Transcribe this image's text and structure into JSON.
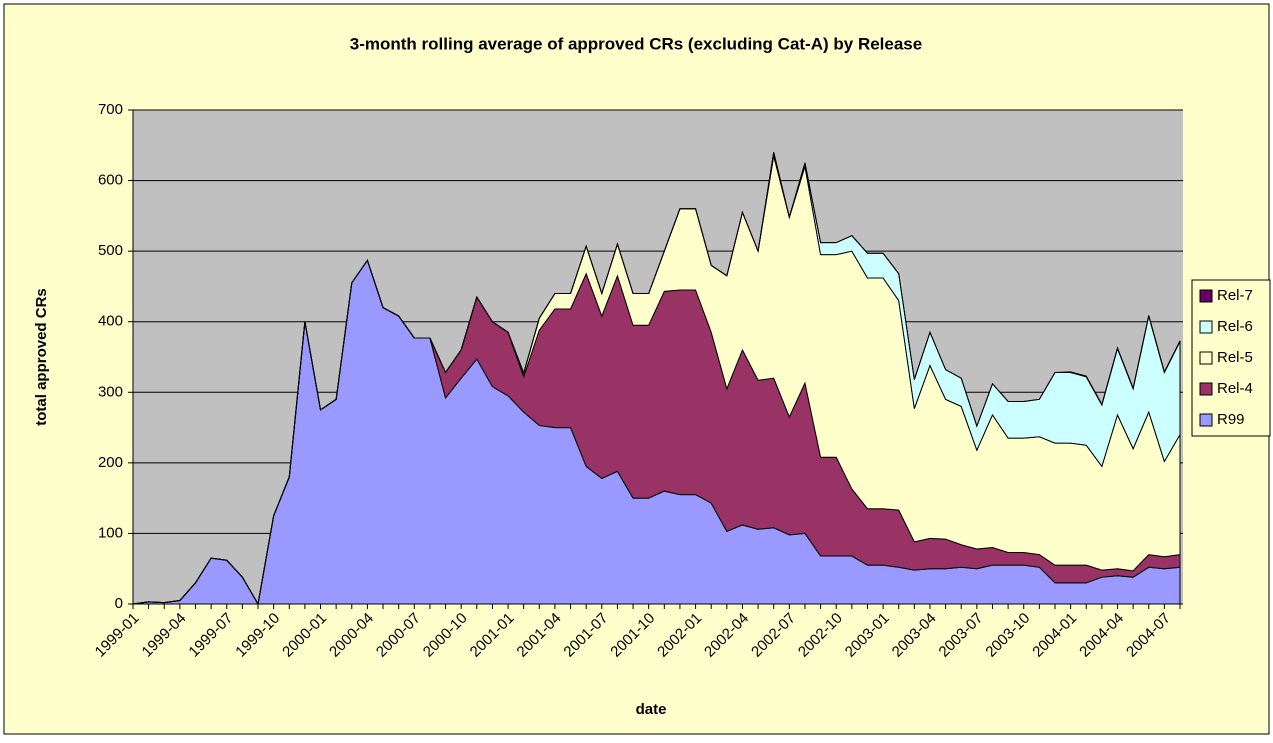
{
  "chart_data": {
    "type": "stacked_area",
    "title": "3-month rolling average of approved CRs (excluding Cat-A) by Release",
    "xlabel": "date",
    "ylabel": "total approved CRs",
    "categories": [
      "1999-01",
      null,
      null,
      "1999-04",
      null,
      null,
      "1999-07",
      null,
      null,
      "1999-10",
      null,
      null,
      "2000-01",
      null,
      null,
      "2000-04",
      null,
      null,
      "2000-07",
      null,
      null,
      "2000-10",
      null,
      null,
      "2001-01",
      null,
      null,
      "2001-04",
      null,
      null,
      "2001-07",
      null,
      null,
      "2001-10",
      null,
      null,
      "2002-01",
      null,
      null,
      "2002-04",
      null,
      null,
      "2002-07",
      null,
      null,
      "2002-10",
      null,
      null,
      "2003-01",
      null,
      null,
      "2003-04",
      null,
      null,
      "2003-07",
      null,
      null,
      "2003-10",
      null,
      null,
      "2004-01",
      null,
      null,
      "2004-04",
      null,
      null,
      "2004-07",
      null
    ],
    "series": [
      {
        "name": "R99",
        "color": "#9999ff",
        "values": [
          0,
          3,
          2,
          5,
          30,
          65,
          62,
          38,
          0,
          125,
          180,
          400,
          275,
          290,
          455,
          487,
          420,
          408,
          377,
          377,
          292,
          320,
          347,
          308,
          295,
          272,
          253,
          250,
          250,
          195,
          178,
          188,
          150,
          150,
          160,
          155,
          155,
          143,
          103,
          112,
          106,
          108,
          98,
          100,
          68,
          68,
          68,
          55,
          55,
          52,
          48,
          50,
          50,
          52,
          50,
          55,
          55,
          55,
          52,
          30,
          30,
          30,
          38,
          40,
          38,
          52,
          50,
          52
        ]
      },
      {
        "name": "Rel-4",
        "color": "#993366",
        "values": [
          0,
          0,
          0,
          0,
          0,
          0,
          0,
          0,
          0,
          0,
          0,
          0,
          0,
          0,
          0,
          0,
          0,
          0,
          0,
          0,
          36,
          40,
          88,
          92,
          90,
          50,
          135,
          168,
          168,
          273,
          230,
          277,
          245,
          245,
          283,
          290,
          290,
          242,
          202,
          248,
          211,
          212,
          167,
          213,
          140,
          140,
          95,
          80,
          80,
          81,
          40,
          43,
          42,
          32,
          28,
          25,
          18,
          18,
          18,
          25,
          25,
          25,
          10,
          10,
          9,
          18,
          17,
          18
        ]
      },
      {
        "name": "Rel-5",
        "color": "#ffffcc",
        "values": [
          0,
          0,
          0,
          0,
          0,
          0,
          0,
          0,
          0,
          0,
          0,
          0,
          0,
          0,
          0,
          0,
          0,
          0,
          0,
          0,
          0,
          0,
          0,
          0,
          0,
          5,
          17,
          22,
          22,
          39,
          32,
          45,
          45,
          45,
          57,
          115,
          115,
          95,
          160,
          195,
          183,
          315,
          283,
          307,
          287,
          287,
          337,
          327,
          327,
          297,
          189,
          245,
          198,
          196,
          140,
          188,
          162,
          162,
          167,
          173,
          173,
          170,
          147,
          218,
          173,
          202,
          135,
          170
        ]
      },
      {
        "name": "Rel-6",
        "color": "#ccffff",
        "values": [
          0,
          0,
          0,
          0,
          0,
          0,
          0,
          0,
          0,
          0,
          0,
          0,
          0,
          0,
          0,
          0,
          0,
          0,
          0,
          0,
          0,
          0,
          0,
          0,
          0,
          0,
          0,
          0,
          0,
          0,
          0,
          0,
          0,
          0,
          0,
          0,
          0,
          0,
          0,
          0,
          0,
          5,
          0,
          5,
          17,
          17,
          22,
          35,
          35,
          38,
          41,
          47,
          42,
          40,
          34,
          44,
          52,
          52,
          53,
          100,
          100,
          97,
          87,
          94,
          85,
          136,
          126,
          132
        ]
      },
      {
        "name": "Rel-7",
        "color": "#660066",
        "values": [
          0,
          0,
          0,
          0,
          0,
          0,
          0,
          0,
          0,
          0,
          0,
          0,
          0,
          0,
          0,
          0,
          0,
          0,
          0,
          0,
          0,
          0,
          0,
          0,
          0,
          0,
          0,
          0,
          0,
          0,
          0,
          0,
          0,
          0,
          0,
          0,
          0,
          0,
          0,
          0,
          0,
          0,
          0,
          0,
          0,
          0,
          0,
          0,
          0,
          0,
          0,
          0,
          0,
          0,
          0,
          0,
          0,
          0,
          0,
          0,
          1,
          1,
          1,
          1,
          1,
          1,
          1,
          1
        ]
      }
    ],
    "ylim": [
      0,
      700
    ],
    "yticks": [
      0,
      100,
      200,
      300,
      400,
      500,
      600,
      700
    ],
    "grid": true,
    "legend": "right"
  }
}
